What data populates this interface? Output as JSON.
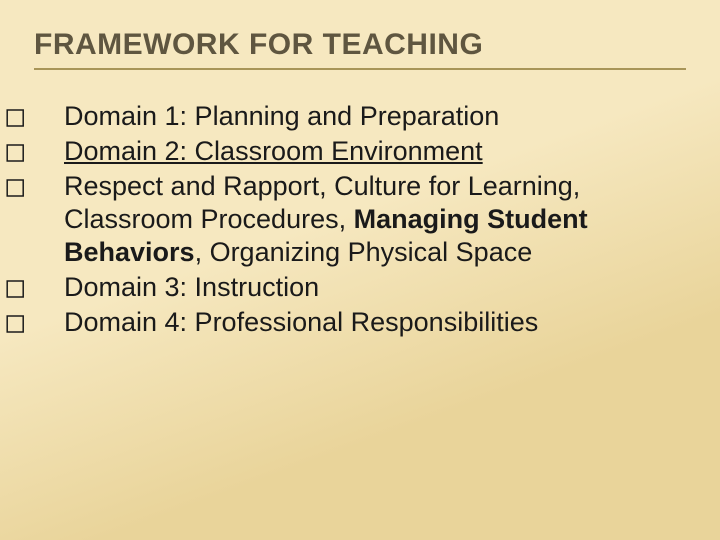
{
  "title": "FRAMEWORK FOR TEACHING",
  "bullet_glyph": "◻",
  "items": {
    "d1": "Domain 1: Planning and Preparation",
    "d2": "Domain 2: Classroom Environment",
    "respect_pre": "Respect and Rapport, Culture for Learning, Classroom Procedures, ",
    "respect_bold": "Managing Student Behaviors",
    "respect_post": ", Organizing Physical Space",
    "d3": "Domain 3: Instruction",
    "d4": "Domain 4: Professional Responsibilities"
  },
  "colors": {
    "bg_light": "#f6e8c0",
    "bg_dark": "#e9d49a",
    "title_color": "#5f5640",
    "title_rule": "#a89558",
    "body_color": "#1a1a1a"
  },
  "style": {
    "title_fontsize": 30,
    "body_fontsize": 27,
    "gradient_angle": 160
  }
}
